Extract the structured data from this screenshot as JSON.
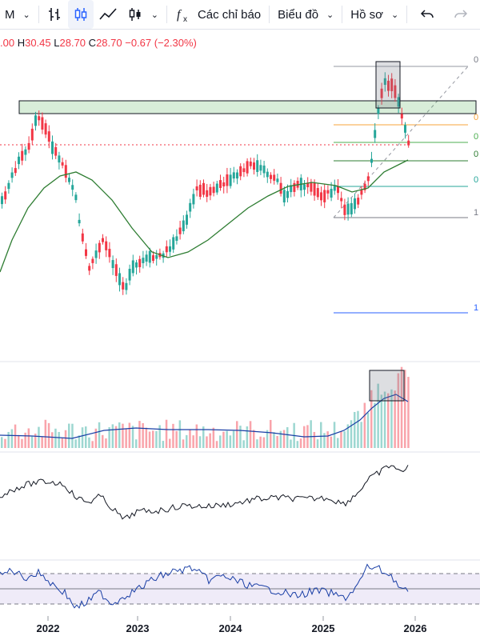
{
  "toolbar": {
    "interval": "M",
    "indicators_label": "Các chỉ báo",
    "chart_label": "Biểu đồ",
    "profile_label": "Hồ sơ",
    "icons": [
      "bar-style-icon",
      "candle-style-icon",
      "line-style-icon",
      "hollow-candle-icon",
      "fx-icon",
      "undo-icon",
      "redo-icon"
    ]
  },
  "legend": {
    "open_value": ".00",
    "high_key": "H",
    "high_value": "30.45",
    "low_key": "L",
    "low_value": "28.70",
    "close_key": "C",
    "close_value": "28.70",
    "change": "−0.67 (−2.30%)"
  },
  "colors": {
    "up": "#26a69a",
    "down": "#f23645",
    "ma": "#2e7d32",
    "volume_ma": "#1a3fa6",
    "fib_orange": "#f7a53b",
    "fib_green": "#4caf50",
    "fib_teal": "#26a69a",
    "fib_blue": "#2196f3",
    "fib_navy": "#2962ff"
  },
  "chart_data": [
    {
      "type": "candlestick",
      "x_labels": [
        "2022",
        "2023",
        "2024",
        "2025",
        "2026"
      ],
      "last_bar": {
        "high": 30.45,
        "low": 28.7,
        "close": 28.7,
        "change": -0.67,
        "change_pct": -2.3
      },
      "overlays": [
        "moving average",
        "Fibonacci retracement",
        "highlight boxes",
        "trend line"
      ],
      "fib_labels": [
        "0",
        "0",
        "0",
        "0",
        "0",
        "1",
        "1"
      ]
    },
    {
      "type": "bar",
      "name_shown": "",
      "overlays": [
        "volume moving average",
        "highlight box"
      ]
    },
    {
      "type": "line",
      "overlays": []
    },
    {
      "type": "line",
      "overlays": [
        "overbought/oversold band"
      ]
    }
  ]
}
